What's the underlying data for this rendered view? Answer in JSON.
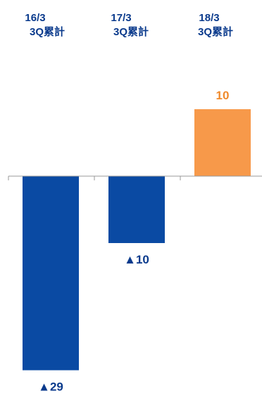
{
  "chart_data": {
    "type": "bar",
    "categories": [
      [
        "16/3",
        "3Q累計"
      ],
      [
        "17/3",
        "3Q累計"
      ],
      [
        "18/3",
        "3Q累計"
      ]
    ],
    "values": [
      -29,
      -10,
      10
    ],
    "data_labels": [
      "▲29",
      "▲10",
      "10"
    ],
    "ylim": [
      -29,
      10
    ],
    "colors": {
      "negative": "#0a4aa3",
      "positive": "#f7994a",
      "category_text": "#0a3a8c",
      "negative_label": "#0a3a8c",
      "positive_label": "#f08a2c",
      "axis": "#999999"
    },
    "grid": false,
    "legend": "none"
  }
}
